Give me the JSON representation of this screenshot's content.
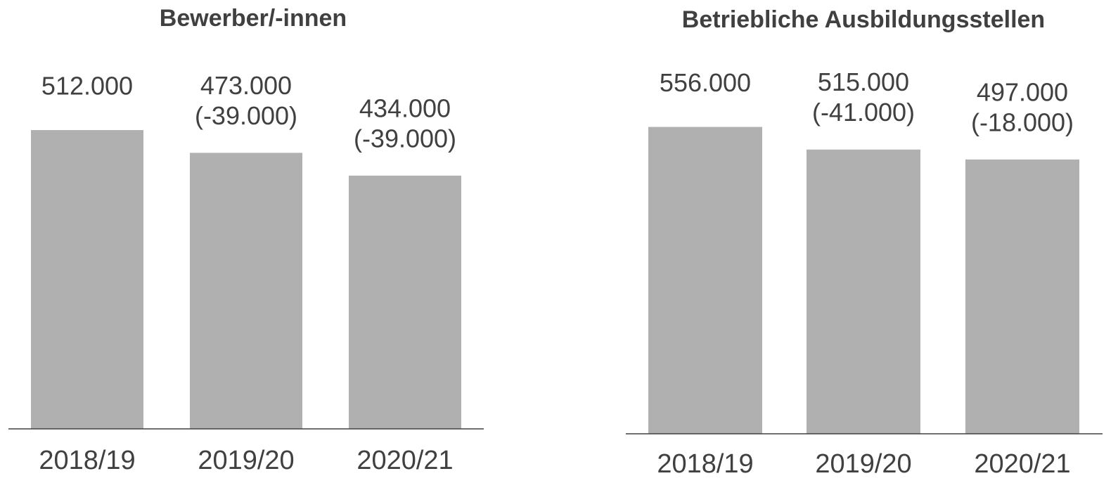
{
  "chart_data": [
    {
      "type": "bar",
      "title": "Bewerber/-innen",
      "categories": [
        "2018/19",
        "2019/20",
        "2020/21"
      ],
      "values": [
        512000,
        473000,
        434000
      ],
      "value_labels": [
        "512.000",
        "473.000",
        "434.000"
      ],
      "annotations": [
        null,
        "(-39.000)",
        "(-39.000)"
      ],
      "color": "#b0b0b0",
      "ylim": [
        0,
        600000
      ]
    },
    {
      "type": "bar",
      "title": "Betriebliche Ausbildungsstellen",
      "categories": [
        "2018/19",
        "2019/20",
        "2020/21"
      ],
      "values": [
        556000,
        515000,
        497000
      ],
      "value_labels": [
        "556.000",
        "515.000",
        "497.000"
      ],
      "annotations": [
        null,
        "(-41.000)",
        "(-18.000)"
      ],
      "color": "#b0b0b0",
      "ylim": [
        0,
        600000
      ]
    }
  ]
}
